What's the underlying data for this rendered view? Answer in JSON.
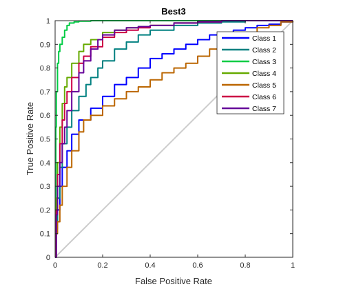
{
  "chart_data": {
    "type": "line",
    "title": "Best3",
    "xlabel": "False Positive Rate",
    "ylabel": "True Positive Rate",
    "xlim": [
      0,
      1
    ],
    "ylim": [
      0,
      1
    ],
    "grid": false,
    "legend_position": "top-right",
    "xticks": [
      "0",
      "0.2",
      "0.4",
      "0.6",
      "0.8",
      "1"
    ],
    "yticks": [
      "0",
      "0.1",
      "0.2",
      "0.3",
      "0.4",
      "0.5",
      "0.6",
      "0.7",
      "0.8",
      "0.9",
      "1"
    ],
    "diagonal": {
      "color": "#cccccc",
      "x": [
        0,
        1
      ],
      "y": [
        0,
        1
      ]
    },
    "series": [
      {
        "name": "Class 1",
        "color": "#0000ff",
        "x": [
          0,
          0.005,
          0.01,
          0.02,
          0.03,
          0.05,
          0.07,
          0.1,
          0.15,
          0.2,
          0.25,
          0.3,
          0.35,
          0.4,
          0.45,
          0.5,
          0.55,
          0.6,
          0.65,
          0.7,
          0.75,
          0.8,
          0.85,
          0.9,
          0.95,
          1
        ],
        "y": [
          0,
          0.12,
          0.2,
          0.3,
          0.38,
          0.45,
          0.52,
          0.58,
          0.63,
          0.68,
          0.73,
          0.76,
          0.8,
          0.84,
          0.86,
          0.88,
          0.9,
          0.92,
          0.94,
          0.95,
          0.96,
          0.97,
          0.98,
          0.985,
          0.995,
          1
        ]
      },
      {
        "name": "Class 2",
        "color": "#008080",
        "x": [
          0,
          0.005,
          0.01,
          0.02,
          0.03,
          0.05,
          0.07,
          0.1,
          0.13,
          0.15,
          0.18,
          0.2,
          0.25,
          0.3,
          0.35,
          0.4,
          0.5,
          0.6,
          0.7,
          0.8,
          0.9,
          1
        ],
        "y": [
          0,
          0.15,
          0.25,
          0.38,
          0.48,
          0.55,
          0.62,
          0.68,
          0.73,
          0.76,
          0.8,
          0.83,
          0.88,
          0.91,
          0.94,
          0.96,
          0.98,
          0.99,
          0.995,
          1,
          1,
          1
        ]
      },
      {
        "name": "Class 3",
        "color": "#00cc44",
        "x": [
          0,
          0.003,
          0.005,
          0.01,
          0.015,
          0.02,
          0.03,
          0.04,
          0.05,
          0.06,
          0.08,
          0.1,
          0.15,
          0.2,
          0.4,
          0.6,
          0.8,
          1
        ],
        "y": [
          0,
          0.55,
          0.7,
          0.82,
          0.87,
          0.9,
          0.93,
          0.96,
          0.98,
          0.99,
          0.995,
          0.998,
          1,
          1,
          1,
          1,
          1,
          1
        ]
      },
      {
        "name": "Class 4",
        "color": "#66aa00",
        "x": [
          0,
          0.005,
          0.01,
          0.02,
          0.03,
          0.04,
          0.05,
          0.07,
          0.1,
          0.12,
          0.15,
          0.2,
          0.25,
          0.3,
          0.35,
          0.4,
          0.5,
          0.6,
          0.7,
          0.8,
          0.9,
          1
        ],
        "y": [
          0,
          0.25,
          0.4,
          0.55,
          0.65,
          0.72,
          0.76,
          0.82,
          0.87,
          0.9,
          0.92,
          0.95,
          0.96,
          0.97,
          0.975,
          0.98,
          0.99,
          0.995,
          1,
          1,
          1,
          1
        ]
      },
      {
        "name": "Class 5",
        "color": "#bb6600",
        "x": [
          0,
          0.005,
          0.01,
          0.02,
          0.03,
          0.05,
          0.07,
          0.1,
          0.12,
          0.15,
          0.2,
          0.25,
          0.3,
          0.35,
          0.4,
          0.45,
          0.5,
          0.55,
          0.6,
          0.65,
          0.7,
          0.75,
          0.8,
          0.85,
          0.9,
          0.95,
          1
        ],
        "y": [
          0,
          0.1,
          0.15,
          0.22,
          0.3,
          0.38,
          0.45,
          0.53,
          0.58,
          0.6,
          0.64,
          0.67,
          0.7,
          0.72,
          0.75,
          0.78,
          0.8,
          0.82,
          0.85,
          0.88,
          0.9,
          0.93,
          0.95,
          0.97,
          0.98,
          0.995,
          1
        ]
      },
      {
        "name": "Class 6",
        "color": "#cc0044",
        "x": [
          0,
          0.005,
          0.01,
          0.02,
          0.03,
          0.04,
          0.05,
          0.07,
          0.1,
          0.12,
          0.15,
          0.2,
          0.25,
          0.3,
          0.35,
          0.4,
          0.5,
          0.6,
          0.7,
          0.8,
          0.9,
          1
        ],
        "y": [
          0,
          0.2,
          0.35,
          0.48,
          0.58,
          0.65,
          0.7,
          0.76,
          0.82,
          0.85,
          0.89,
          0.93,
          0.95,
          0.96,
          0.97,
          0.98,
          0.99,
          0.995,
          1,
          1,
          1,
          1
        ]
      },
      {
        "name": "Class 7",
        "color": "#660099",
        "x": [
          0,
          0.005,
          0.01,
          0.02,
          0.03,
          0.04,
          0.05,
          0.07,
          0.1,
          0.12,
          0.15,
          0.18,
          0.2,
          0.25,
          0.3,
          0.35,
          0.4,
          0.5,
          0.6,
          0.7,
          0.8,
          0.9,
          1
        ],
        "y": [
          0,
          0.18,
          0.3,
          0.4,
          0.48,
          0.55,
          0.62,
          0.7,
          0.78,
          0.83,
          0.88,
          0.92,
          0.94,
          0.96,
          0.97,
          0.975,
          0.98,
          0.99,
          0.995,
          1,
          1,
          1,
          1
        ]
      }
    ]
  }
}
